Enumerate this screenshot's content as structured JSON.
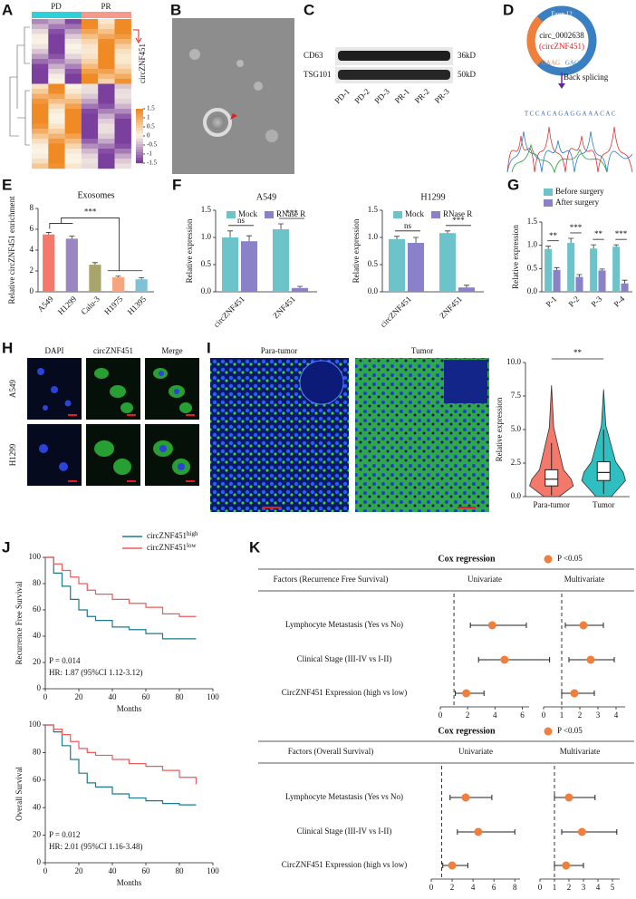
{
  "panel_labels": [
    "A",
    "B",
    "C",
    "D",
    "E",
    "F",
    "G",
    "H",
    "I",
    "J",
    "K"
  ],
  "heatmap": {
    "groups": [
      "PD",
      "PR"
    ],
    "gene": "circZNF451",
    "colorbar_ticks": [
      1.5,
      1,
      0.5,
      0,
      -0.5,
      -1,
      -1.5
    ]
  },
  "western": {
    "proteins": [
      "CD63",
      "TSG101"
    ],
    "sizes": [
      "36kD",
      "50kD"
    ],
    "lanes": [
      "PD-1",
      "PD-2",
      "PD-3",
      "PR-1",
      "PR-2",
      "PR-3"
    ]
  },
  "circ": {
    "exon": "Exon 12",
    "id": "circ_0002638",
    "alias": "(circZNF451)",
    "junction_left": "GAAG",
    "junction_right": "GAGG",
    "event": "Back splicing",
    "sequence": "TCCACAGAGGAAACAC"
  },
  "fish": {
    "channels": [
      "DAPI",
      "circZNF451",
      "Merge"
    ],
    "cells": [
      "A549",
      "H1299"
    ]
  },
  "tissue": {
    "samples": [
      "Para-tumor",
      "Tumor"
    ]
  },
  "chart_data": [
    {
      "type": "bar",
      "title": "Exosomes",
      "ylabel": "Relative circZNF451 enrichment",
      "categories": [
        "A549",
        "H1299",
        "Calu-3",
        "H1975",
        "H1395"
      ],
      "values": [
        5.5,
        5.1,
        2.6,
        1.4,
        1.2
      ],
      "errors": [
        0.2,
        0.25,
        0.2,
        0.1,
        0.15
      ],
      "colors": [
        "#f4796b",
        "#9b86c2",
        "#a7a46c",
        "#f7a57f",
        "#7fc1d6"
      ],
      "ylim": [
        0,
        8
      ],
      "yticks": [
        0,
        2,
        4,
        6,
        8
      ],
      "significance": "***"
    },
    {
      "type": "bar",
      "title": "A549",
      "ylabel": "Relative expression",
      "categories": [
        "circZNF451",
        "ZNF451"
      ],
      "series": [
        {
          "name": "Mock",
          "color": "#6cc3c9",
          "values": [
            1.0,
            1.15
          ],
          "errors": [
            0.12,
            0.1
          ]
        },
        {
          "name": "RNase R",
          "color": "#8a82c9",
          "values": [
            0.93,
            0.07
          ],
          "errors": [
            0.1,
            0.03
          ]
        }
      ],
      "ylim": [
        0,
        1.5
      ],
      "yticks": [
        {
          "value": 0,
          "label": "0.0"
        },
        {
          "value": 0.5,
          "label": "0.5"
        },
        {
          "value": 1,
          "label": "1.0"
        },
        {
          "value": 1.5,
          "label": "1.5"
        }
      ],
      "significance": [
        "ns",
        "***"
      ]
    },
    {
      "type": "bar",
      "title": "H1299",
      "ylabel": "Relative expression",
      "categories": [
        "circZNF451",
        "ZNF451"
      ],
      "series": [
        {
          "name": "Mock",
          "color": "#6cc3c9",
          "values": [
            0.97,
            1.08
          ],
          "errors": [
            0.05,
            0.04
          ]
        },
        {
          "name": "RNase R",
          "color": "#8a82c9",
          "values": [
            0.9,
            0.08
          ],
          "errors": [
            0.1,
            0.04
          ]
        }
      ],
      "ylim": [
        0,
        1.5
      ],
      "yticks": [
        {
          "value": 0,
          "label": "0.0"
        },
        {
          "value": 0.5,
          "label": "0.5"
        },
        {
          "value": 1,
          "label": "1.0"
        },
        {
          "value": 1.5,
          "label": "1.5"
        }
      ],
      "significance": [
        "ns",
        "***"
      ]
    },
    {
      "type": "bar",
      "ylabel": "Relative expression",
      "categories": [
        "P-1",
        "P-2",
        "P-3",
        "P-4"
      ],
      "series": [
        {
          "name": "Before surgery",
          "color": "#6cc3c9",
          "values": [
            0.92,
            1.05,
            0.93,
            0.97
          ],
          "errors": [
            0.06,
            0.1,
            0.08,
            0.04
          ]
        },
        {
          "name": "After surgery",
          "color": "#8a82c9",
          "values": [
            0.47,
            0.32,
            0.46,
            0.18
          ],
          "errors": [
            0.05,
            0.05,
            0.03,
            0.07
          ]
        }
      ],
      "ylim": [
        0,
        1.5
      ],
      "yticks": [
        {
          "value": 0,
          "label": "0.0"
        },
        {
          "value": 0.5,
          "label": "0.5"
        },
        {
          "value": 1,
          "label": "1.0"
        },
        {
          "value": 1.5,
          "label": "1.5"
        }
      ],
      "significance": [
        "**",
        "***",
        "**",
        "***"
      ]
    },
    {
      "type": "violin",
      "ylabel": "Relative expression",
      "categories": [
        "Para-tumor",
        "Tumor"
      ],
      "colors": [
        "#f4796b",
        "#2fbfc0"
      ],
      "min": [
        0,
        0
      ],
      "whisker_low": [
        0.1,
        0.2
      ],
      "q1": [
        0.8,
        1.2
      ],
      "median": [
        1.3,
        1.8
      ],
      "q3": [
        2.0,
        2.6
      ],
      "whisker_high": [
        4.0,
        5.0
      ],
      "max": [
        8.3,
        8.0
      ],
      "ylim": [
        0,
        10
      ],
      "yticks": [
        {
          "value": 0,
          "label": "0.0"
        },
        {
          "value": 2.5,
          "label": "2.5"
        },
        {
          "value": 5,
          "label": "5.0"
        },
        {
          "value": 7.5,
          "label": "7.5"
        },
        {
          "value": 10,
          "label": "10.0"
        }
      ],
      "significance": "**"
    },
    {
      "type": "line",
      "step": true,
      "legend": true,
      "ylabel": "Recurrence Free Survival",
      "xlabel": "Months",
      "x": [
        0,
        5,
        10,
        15,
        20,
        25,
        30,
        40,
        50,
        60,
        70,
        80,
        90
      ],
      "series": [
        {
          "name": "circZNF451",
          "superscript": "high",
          "color": "#1a7a8c",
          "values": [
            100,
            88,
            78,
            68,
            60,
            55,
            52,
            47,
            45,
            42,
            38,
            38,
            38
          ]
        },
        {
          "name": "circZNF451",
          "superscript": "low",
          "color": "#f05a5a",
          "values": [
            100,
            95,
            90,
            85,
            80,
            75,
            72,
            68,
            65,
            62,
            57,
            55,
            55
          ]
        }
      ],
      "xlim": [
        0,
        100
      ],
      "xticks": [
        0,
        20,
        40,
        60,
        80,
        100
      ],
      "ylim": [
        0,
        100
      ],
      "yticks": [
        0,
        20,
        40,
        60,
        80,
        100
      ],
      "annotations": [
        "P = 0.014",
        "HR: 1.87 (95%CI 1.12-3.12)"
      ]
    },
    {
      "type": "line",
      "step": true,
      "legend": false,
      "ylabel": "Overall Survival",
      "xlabel": "Months",
      "x": [
        0,
        5,
        10,
        15,
        20,
        25,
        30,
        40,
        50,
        60,
        70,
        80,
        90
      ],
      "series": [
        {
          "name": "circZNF451",
          "superscript": "high",
          "color": "#1a7a8c",
          "values": [
            100,
            95,
            85,
            75,
            65,
            58,
            55,
            50,
            47,
            45,
            43,
            42,
            42
          ]
        },
        {
          "name": "circZNF451",
          "superscript": "low",
          "color": "#f05a5a",
          "values": [
            100,
            97,
            93,
            88,
            83,
            80,
            78,
            75,
            72,
            70,
            67,
            62,
            57
          ]
        }
      ],
      "xlim": [
        0,
        100
      ],
      "xticks": [
        0,
        20,
        40,
        60,
        80,
        100
      ],
      "ylim": [
        0,
        100
      ],
      "yticks": [
        0,
        20,
        40,
        60,
        80,
        100
      ],
      "annotations": [
        "P = 0.012",
        "HR: 2.01 (95%CI 1.16-3.48)"
      ]
    },
    {
      "type": "forest",
      "title": "Cox regression",
      "legend_label": "P <0.05",
      "color": "#f07f3c",
      "factor_header": "Factors (Recurrence Free Survival)",
      "factors": [
        "Lymphocyte Metastasis (Yes vs No)",
        "Clinical Stage (III-IV vs I-II)",
        "CircZNF451 Expression (high vs low)"
      ],
      "models": [
        {
          "name": "Univariate",
          "estimates": [
            3.8,
            4.7,
            1.9
          ],
          "lower": [
            2.2,
            2.8,
            1.1
          ],
          "upper": [
            6.3,
            8.0,
            3.2
          ],
          "ref": 1,
          "xlim": [
            0,
            6.5
          ],
          "xticks": [
            0,
            2,
            4,
            6
          ]
        },
        {
          "name": "Multivariate",
          "estimates": [
            2.2,
            2.6,
            1.7
          ],
          "lower": [
            1.2,
            1.4,
            1.0
          ],
          "upper": [
            3.3,
            3.9,
            2.8
          ],
          "ref": 1,
          "xlim": [
            0,
            4.5
          ],
          "xticks": [
            0,
            1,
            2,
            3,
            4
          ]
        }
      ]
    },
    {
      "type": "forest",
      "title": "Cox regression",
      "legend_label": "P <0.05",
      "color": "#f07f3c",
      "factor_header": "Factors (Overall Survival)",
      "factors": [
        "Lymphocyte Metastasis (Yes vs No)",
        "Clinical Stage (III-IV vs I-II)",
        "CircZNF451 Expression (high vs low)"
      ],
      "models": [
        {
          "name": "Univariate",
          "estimates": [
            3.3,
            4.5,
            2.0
          ],
          "lower": [
            1.8,
            2.5,
            1.1
          ],
          "upper": [
            5.8,
            8.0,
            3.5
          ],
          "ref": 1,
          "xlim": [
            0,
            8.5
          ],
          "xticks": [
            0,
            2,
            4,
            6,
            8
          ]
        },
        {
          "name": "Multivariate",
          "estimates": [
            2.0,
            2.9,
            1.8
          ],
          "lower": [
            1.0,
            1.5,
            1.0
          ],
          "upper": [
            3.8,
            5.3,
            3.0
          ],
          "ref": 1,
          "xlim": [
            0,
            5.5
          ],
          "xticks": [
            0,
            1,
            2,
            3,
            4,
            5
          ]
        }
      ]
    }
  ]
}
